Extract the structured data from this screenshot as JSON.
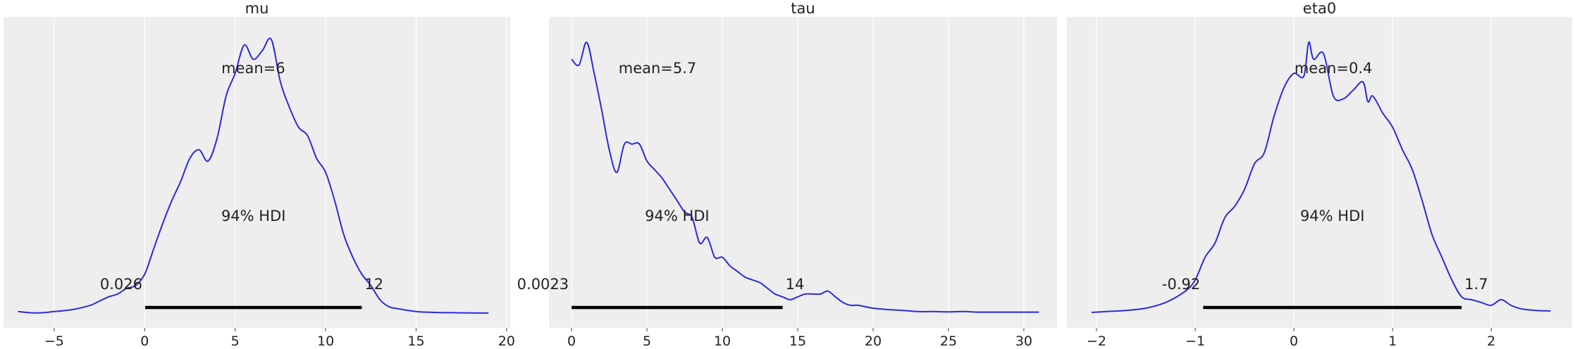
{
  "style": {
    "line_color": "#2a2adc",
    "panel_bg": "#eeeeee",
    "grid_color": "#ffffff",
    "hdi_color": "#000000"
  },
  "chart_data": [
    {
      "type": "line",
      "title": "mu",
      "xlim": [
        -7.8,
        20.2
      ],
      "grid": true,
      "x_ticks": [
        -5,
        0,
        5,
        10,
        15,
        20
      ],
      "x_tick_labels": [
        "−5",
        "0",
        "5",
        "10",
        "15",
        "20"
      ],
      "mean_label": "mean=6",
      "hdi_label": "94% HDI",
      "hdi": {
        "low": 0.026,
        "high": 12,
        "low_label": "0.026",
        "high_label": "12"
      },
      "series": [
        {
          "x": [
            -7,
            -6,
            -5,
            -4,
            -3,
            -2.5,
            -2,
            -1.5,
            -1,
            -0.5,
            0,
            0.5,
            1,
            1.5,
            2,
            2.5,
            3,
            3.5,
            4,
            4.5,
            5,
            5.5,
            6,
            6.5,
            7,
            7.5,
            8,
            8.5,
            9,
            9.5,
            10,
            10.5,
            11,
            11.5,
            12,
            12.5,
            13,
            13.5,
            14,
            15,
            16,
            17,
            18,
            19
          ],
          "y": [
            0.008,
            0.003,
            0.008,
            0.015,
            0.03,
            0.045,
            0.06,
            0.07,
            0.09,
            0.1,
            0.14,
            0.23,
            0.32,
            0.4,
            0.47,
            0.55,
            0.58,
            0.54,
            0.62,
            0.77,
            0.85,
            0.95,
            0.9,
            0.93,
            0.97,
            0.82,
            0.73,
            0.66,
            0.63,
            0.55,
            0.5,
            0.4,
            0.28,
            0.2,
            0.14,
            0.1,
            0.05,
            0.025,
            0.018,
            0.008,
            0.005,
            0.004,
            0.003,
            0.003
          ]
        }
      ]
    },
    {
      "type": "line",
      "title": "tau",
      "xlim": [
        -1.5,
        32.2
      ],
      "grid": true,
      "x_ticks": [
        0,
        5,
        10,
        15,
        20,
        25,
        30
      ],
      "x_tick_labels": [
        "0",
        "5",
        "10",
        "15",
        "20",
        "25",
        "30"
      ],
      "mean_label": "mean=5.7",
      "hdi_label": "94% HDI",
      "hdi": {
        "low": 0.0023,
        "high": 14,
        "low_label": "0.0023",
        "high_label": "14"
      },
      "series": [
        {
          "x": [
            0,
            0.5,
            1,
            1.5,
            2,
            2.5,
            3,
            3.5,
            4,
            4.5,
            5,
            5.5,
            6,
            6.5,
            7,
            7.5,
            8,
            8.5,
            9,
            9.5,
            10,
            10.5,
            11,
            11.5,
            12,
            12.5,
            13,
            13.5,
            14,
            14.5,
            15,
            15.5,
            16,
            16.5,
            17,
            17.5,
            18,
            18.5,
            19,
            20,
            21,
            22,
            23,
            24,
            25,
            26,
            27,
            28,
            29,
            30,
            31
          ],
          "y": [
            0.9,
            0.88,
            0.96,
            0.85,
            0.72,
            0.58,
            0.5,
            0.6,
            0.6,
            0.6,
            0.54,
            0.51,
            0.48,
            0.44,
            0.4,
            0.36,
            0.34,
            0.25,
            0.27,
            0.2,
            0.2,
            0.17,
            0.15,
            0.13,
            0.12,
            0.11,
            0.09,
            0.07,
            0.06,
            0.05,
            0.06,
            0.07,
            0.07,
            0.07,
            0.08,
            0.06,
            0.04,
            0.03,
            0.03,
            0.02,
            0.015,
            0.012,
            0.008,
            0.008,
            0.007,
            0.008,
            0.006,
            0.006,
            0.006,
            0.006,
            0.006
          ]
        }
      ]
    },
    {
      "type": "line",
      "title": "eta0",
      "xlim": [
        -2.3,
        2.82
      ],
      "grid": true,
      "x_ticks": [
        -2,
        -1,
        0,
        1,
        2
      ],
      "x_tick_labels": [
        "−2",
        "−1",
        "0",
        "1",
        "2"
      ],
      "mean_label": "mean=0.4",
      "hdi_label": "94% HDI",
      "hdi": {
        "low": -0.92,
        "high": 1.7,
        "low_label": "-0.92",
        "high_label": "1.7"
      },
      "series": [
        {
          "x": [
            -2.05,
            -1.9,
            -1.7,
            -1.5,
            -1.3,
            -1.1,
            -1,
            -0.9,
            -0.8,
            -0.7,
            -0.6,
            -0.5,
            -0.4,
            -0.3,
            -0.2,
            -0.1,
            0,
            0.1,
            0.15,
            0.2,
            0.3,
            0.4,
            0.5,
            0.6,
            0.7,
            0.75,
            0.8,
            0.9,
            1,
            1.1,
            1.2,
            1.3,
            1.4,
            1.5,
            1.6,
            1.7,
            1.8,
            1.9,
            2,
            2.1,
            2.2,
            2.3,
            2.45,
            2.6
          ],
          "y": [
            0.005,
            0.008,
            0.012,
            0.02,
            0.04,
            0.08,
            0.12,
            0.2,
            0.25,
            0.34,
            0.38,
            0.44,
            0.53,
            0.57,
            0.7,
            0.8,
            0.85,
            0.84,
            0.96,
            0.9,
            0.92,
            0.77,
            0.76,
            0.79,
            0.82,
            0.75,
            0.77,
            0.71,
            0.66,
            0.58,
            0.51,
            0.4,
            0.28,
            0.2,
            0.12,
            0.06,
            0.05,
            0.04,
            0.03,
            0.05,
            0.03,
            0.018,
            0.012,
            0.01
          ]
        }
      ]
    }
  ]
}
